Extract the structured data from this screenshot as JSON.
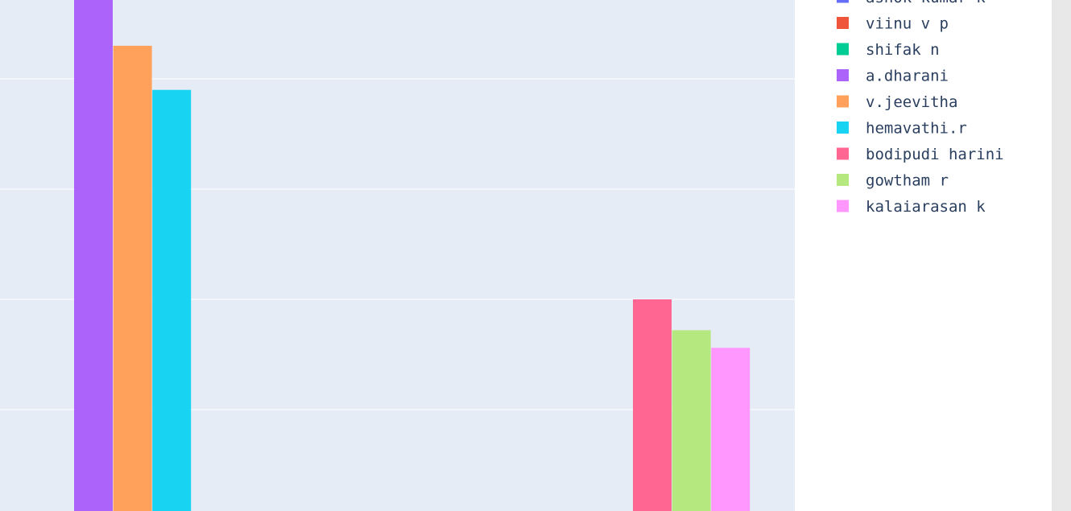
{
  "chart_data": {
    "type": "bar",
    "grid": true,
    "legend_placement": "right",
    "plot_background": "#E5ECF6",
    "paper_background": "#FFFFFF",
    "series": [
      {
        "name": "ashok kumar k",
        "color": "#636EFA",
        "group": 0,
        "value": null
      },
      {
        "name": "viinu v p",
        "color": "#EF553B",
        "group": 0,
        "value": null
      },
      {
        "name": "shifak n",
        "color": "#00CC96",
        "group": 0,
        "value": null
      },
      {
        "name": "a.dharani",
        "color": "#AB63FA",
        "group": 0,
        "value": 4.8
      },
      {
        "name": "v.jeevitha",
        "color": "#FFA15A",
        "group": 0,
        "value": 4.3
      },
      {
        "name": "hemavathi.r",
        "color": "#19D3F3",
        "group": 0,
        "value": 3.9
      },
      {
        "name": "bodipudi harini",
        "color": "#FF6692",
        "group": 1,
        "value": 2.0
      },
      {
        "name": "gowtham r",
        "color": "#B6E880",
        "group": 1,
        "value": 1.72
      },
      {
        "name": "kalaiarasan k",
        "color": "#FF97FF",
        "group": 1,
        "value": 1.56
      }
    ]
  }
}
